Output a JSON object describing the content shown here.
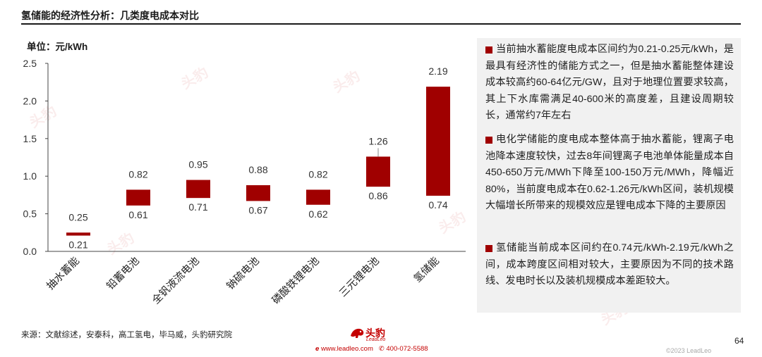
{
  "page": {
    "title": "氢储能的经济性分析：几类度电成本对比",
    "source": "来源：文献综述，安泰科，高工氢电，毕马威，头豹研究院",
    "page_number": "64",
    "copyright": "©2023 LeadLeo",
    "logo": {
      "text": "头豹",
      "sub": "LeadLeo"
    },
    "contact": {
      "website": "www.leadleo.com",
      "phone": "400-072-5588"
    },
    "watermark": "头豹",
    "accent_color": "#a00000"
  },
  "chart_data": {
    "type": "bar",
    "subtype": "floating-range",
    "unit_label": "单位：元/kWh",
    "categories": [
      "抽水蓄能",
      "铅蓄电池",
      "全钒液流电池",
      "钠硫电池",
      "磷酸铁锂电池",
      "三元锂电池",
      "氢储能"
    ],
    "low": [
      0.21,
      0.61,
      0.71,
      0.67,
      0.62,
      0.86,
      0.74
    ],
    "high": [
      0.25,
      0.82,
      0.95,
      0.88,
      0.82,
      1.26,
      2.19
    ],
    "low_labels": [
      "0.21",
      "0.61",
      "0.71",
      "0.67",
      "0.62",
      "0.86",
      "0.74"
    ],
    "high_labels": [
      "0.25",
      "0.82",
      "0.95",
      "0.88",
      "0.82",
      "1.26",
      "2.19"
    ],
    "ylim": [
      0,
      2.5
    ],
    "yticks": [
      "0.0",
      "0.5",
      "1.0",
      "1.5",
      "2.0",
      "2.5"
    ],
    "bar_color": "#a00000",
    "grid": false,
    "legend": "none"
  },
  "notes": [
    "当前抽水蓄能度电成本区间约为0.21-0.25元/kWh，是最具有经济性的储能方式之一，但是抽水蓄能整体建设成本较高约60-64亿元/GW，且对于地理位置要求较高，其上下水库需满足40-600米的高度差，且建设周期较长，通常约7年左右",
    "电化学储能的度电成本整体高于抽水蓄能，锂离子电池降本速度较快，过去8年间锂离子电池单体能量成本自450-650万元/MWh下降至100-150万元/MWh，降幅近80%，当前度电成本在0.62-1.26元/kWh区间，装机规模大幅增长所带来的规模效应是锂电成本下降的主要原因",
    "氢储能当前成本区间约在0.74元/kWh-2.19元/kWh之间，成本跨度区间相对较大，主要原因为不同的技术路线、发电时长以及装机规模成本差距较大。"
  ]
}
